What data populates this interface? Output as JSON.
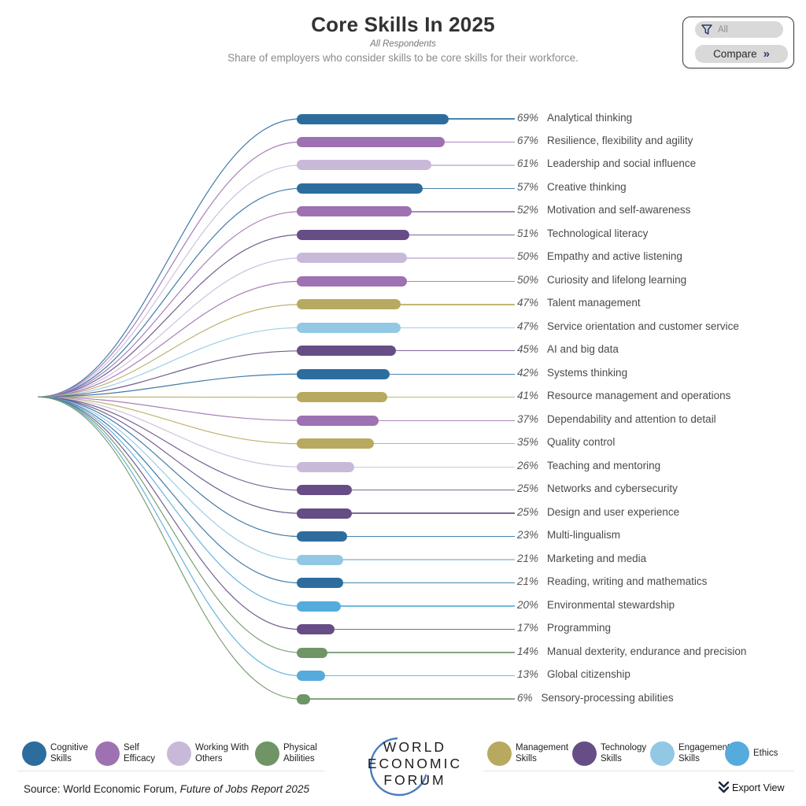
{
  "header": {
    "title": "Core Skills In 2025",
    "subtitle": "All Respondents",
    "description": "Share of employers who consider skills to be core skills for their workforce."
  },
  "filter_panel": {
    "all_label": "All",
    "compare_label": "Compare",
    "funnel_icon": "filter-funnel",
    "chevrons": "»"
  },
  "palette": {
    "cognitive": "#2d6d9e",
    "self_efficacy": "#9d71b2",
    "working_with_others": "#c9b9d8",
    "physical": "#6f9566",
    "management": "#b7aa60",
    "technology": "#664d85",
    "engagement": "#92c8e4",
    "ethics": "#55abdb"
  },
  "chart_data": {
    "type": "bar",
    "orientation": "horizontal",
    "title": "Core Skills In 2025",
    "subtitle": "All Respondents",
    "value_unit": "%",
    "xlim": [
      0,
      69
    ],
    "skills": [
      {
        "label": "Analytical thinking",
        "value": 69,
        "category": "cognitive"
      },
      {
        "label": "Resilience, flexibility and agility",
        "value": 67,
        "category": "self_efficacy"
      },
      {
        "label": "Leadership and social influence",
        "value": 61,
        "category": "working_with_others"
      },
      {
        "label": "Creative thinking",
        "value": 57,
        "category": "cognitive"
      },
      {
        "label": "Motivation and self-awareness",
        "value": 52,
        "category": "self_efficacy"
      },
      {
        "label": "Technological literacy",
        "value": 51,
        "category": "technology"
      },
      {
        "label": "Empathy and active listening",
        "value": 50,
        "category": "working_with_others"
      },
      {
        "label": "Curiosity and lifelong learning",
        "value": 50,
        "category": "self_efficacy"
      },
      {
        "label": "Talent management",
        "value": 47,
        "category": "management"
      },
      {
        "label": "Service orientation and customer service",
        "value": 47,
        "category": "engagement"
      },
      {
        "label": "AI and big data",
        "value": 45,
        "category": "technology"
      },
      {
        "label": "Systems thinking",
        "value": 42,
        "category": "cognitive"
      },
      {
        "label": "Resource management and operations",
        "value": 41,
        "category": "management"
      },
      {
        "label": "Dependability and attention to detail",
        "value": 37,
        "category": "self_efficacy"
      },
      {
        "label": "Quality control",
        "value": 35,
        "category": "management"
      },
      {
        "label": "Teaching and mentoring",
        "value": 26,
        "category": "working_with_others"
      },
      {
        "label": "Networks and cybersecurity",
        "value": 25,
        "category": "technology"
      },
      {
        "label": "Design and user experience",
        "value": 25,
        "category": "technology"
      },
      {
        "label": "Multi-lingualism",
        "value": 23,
        "category": "cognitive"
      },
      {
        "label": "Marketing and media",
        "value": 21,
        "category": "engagement"
      },
      {
        "label": "Reading, writing and mathematics",
        "value": 21,
        "category": "cognitive"
      },
      {
        "label": "Environmental stewardship",
        "value": 20,
        "category": "ethics"
      },
      {
        "label": "Programming",
        "value": 17,
        "category": "technology"
      },
      {
        "label": "Manual dexterity, endurance and precision",
        "value": 14,
        "category": "physical"
      },
      {
        "label": "Global citizenship",
        "value": 13,
        "category": "ethics"
      },
      {
        "label": "Sensory-processing abilities",
        "value": 6,
        "category": "physical"
      }
    ]
  },
  "legend": {
    "left": [
      {
        "label": "Cognitive\nSkills",
        "category": "cognitive"
      },
      {
        "label": "Self\nEfficacy",
        "category": "self_efficacy"
      },
      {
        "label": "Working With\nOthers",
        "category": "working_with_others"
      },
      {
        "label": "Physical\nAbilities",
        "category": "physical"
      }
    ],
    "right": [
      {
        "label": "Management\nSkills",
        "category": "management"
      },
      {
        "label": "Technology\nSkills",
        "category": "technology"
      },
      {
        "label": "Engagement\nSkills",
        "category": "engagement"
      },
      {
        "label": "Ethics",
        "category": "ethics"
      }
    ]
  },
  "logo": {
    "lines": [
      "WORLD",
      "ECONOMIC",
      "FORUM"
    ],
    "arc_color": "#4a7cc0"
  },
  "footer": {
    "source_prefix": "Source:",
    "source_text": "World Economic Forum,",
    "source_italic": "Future of Jobs Report 2025",
    "export_label": "Export View"
  }
}
